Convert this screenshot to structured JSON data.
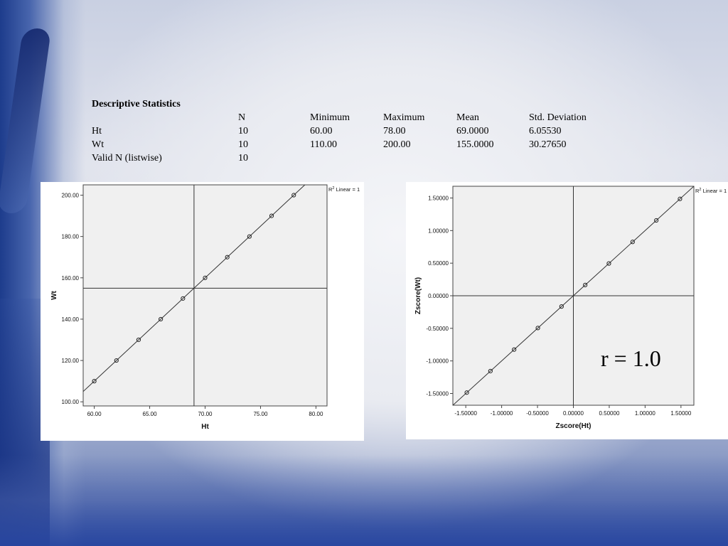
{
  "stats_table": {
    "title": "Descriptive Statistics",
    "headers": [
      "",
      "N",
      "Minimum",
      "Maximum",
      "Mean",
      "Std. Deviation"
    ],
    "rows": [
      [
        "Ht",
        "10",
        "60.00",
        "78.00",
        "69.0000",
        "6.05530"
      ],
      [
        "Wt",
        "10",
        "110.00",
        "200.00",
        "155.0000",
        "30.27650"
      ],
      [
        "Valid N (listwise)",
        "10",
        "",
        "",
        "",
        ""
      ]
    ]
  },
  "annotation": "r = 1.0",
  "chart_data": [
    {
      "type": "scatter",
      "xlabel": "Ht",
      "ylabel": "Wt",
      "xlim": [
        59.0,
        81.0
      ],
      "ylim": [
        98.0,
        205.0
      ],
      "xticks": [
        60,
        65,
        70,
        75,
        80
      ],
      "yticks": [
        100,
        120,
        140,
        160,
        180,
        200
      ],
      "xtick_labels": [
        "60.00",
        "65.00",
        "70.00",
        "75.00",
        "80.00"
      ],
      "ytick_labels": [
        "100.00",
        "120.00",
        "140.00",
        "160.00",
        "180.00",
        "200.00"
      ],
      "x": [
        60,
        62,
        64,
        66,
        68,
        70,
        72,
        74,
        76,
        78
      ],
      "y": [
        110,
        120,
        130,
        140,
        150,
        160,
        170,
        180,
        190,
        200
      ],
      "reference_lines": {
        "x": 69.0,
        "y": 155.0
      },
      "fit_line": {
        "slope": 5,
        "intercept": -190
      },
      "legend": "Linear = 1",
      "legend_prefix": "R",
      "legend_sup": "2",
      "legend_position": "top-right",
      "grid": false
    },
    {
      "type": "scatter",
      "xlabel": "Zscore(Ht)",
      "ylabel": "Zscore(Wt)",
      "xlim": [
        -1.68,
        1.68
      ],
      "ylim": [
        -1.68,
        1.68
      ],
      "xticks": [
        -1.5,
        -1.0,
        -0.5,
        0.0,
        0.5,
        1.0,
        1.5
      ],
      "yticks": [
        -1.5,
        -1.0,
        -0.5,
        0.0,
        0.5,
        1.0,
        1.5
      ],
      "xtick_labels": [
        "-1.50000",
        "-1.00000",
        "-0.50000",
        "0.00000",
        "0.50000",
        "1.00000",
        "1.50000"
      ],
      "ytick_labels": [
        "-1.50000",
        "-1.00000",
        "-0.50000",
        "0.00000",
        "0.50000",
        "1.00000",
        "1.50000"
      ],
      "x": [
        -1.486,
        -1.156,
        -0.826,
        -0.495,
        -0.165,
        0.165,
        0.495,
        0.826,
        1.156,
        1.486
      ],
      "y": [
        -1.486,
        -1.156,
        -0.826,
        -0.495,
        -0.165,
        0.165,
        0.495,
        0.826,
        1.156,
        1.486
      ],
      "reference_lines": {
        "x": 0.0,
        "y": 0.0
      },
      "fit_line": {
        "slope": 1,
        "intercept": 0
      },
      "legend": "Linear = 1",
      "legend_prefix": "R",
      "legend_sup": "2",
      "legend_position": "top-right",
      "grid": false
    }
  ]
}
